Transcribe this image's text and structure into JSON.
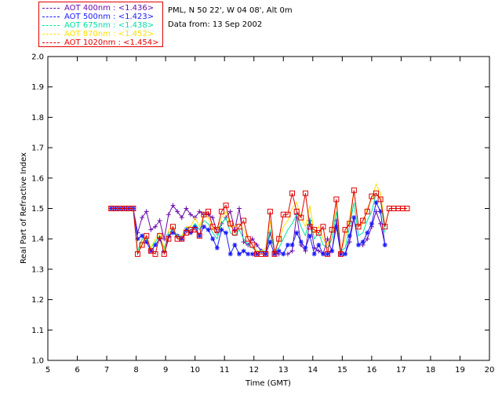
{
  "header": {
    "location": "PML, N 50 22', W 04 08', Alt 0m",
    "date": "Data from: 13 Sep 2002"
  },
  "legend": [
    {
      "label": "AOT  400nm : <1.436>",
      "color": "#6a0dad"
    },
    {
      "label": "AOT  500nm : <1.423>",
      "color": "#1a1aff"
    },
    {
      "label": "AOT  675nm : <1.438>",
      "color": "#00e0a0"
    },
    {
      "label": "AOT  870nm : <1.452>",
      "color": "#ffe000"
    },
    {
      "label": "AOT 1020nm : <1.454>",
      "color": "#e00000"
    }
  ],
  "chart_data": {
    "type": "line",
    "title": "",
    "xlabel": "Time (GMT)",
    "ylabel": "Real Part of Refractive Index",
    "xlim": [
      5,
      20
    ],
    "ylim": [
      1.0,
      2.0
    ],
    "xticks": [
      5,
      6,
      7,
      8,
      9,
      10,
      11,
      12,
      13,
      14,
      15,
      16,
      17,
      18,
      19,
      20
    ],
    "yticks": [
      1.0,
      1.1,
      1.2,
      1.3,
      1.4,
      1.5,
      1.6,
      1.7,
      1.8,
      1.9,
      2.0
    ],
    "ytick_labels": [
      "1.0",
      "1.1",
      "1.2",
      "1.3",
      "1.4",
      "1.5",
      "1.6",
      "1.7",
      "1.8",
      "1.9",
      "2.0"
    ],
    "x": [
      7.15,
      7.3,
      7.45,
      7.6,
      7.75,
      7.9,
      8.05,
      8.2,
      8.35,
      8.5,
      8.65,
      8.8,
      8.95,
      9.1,
      9.25,
      9.4,
      9.55,
      9.7,
      9.85,
      10.0,
      10.15,
      10.3,
      10.45,
      10.6,
      10.75,
      10.9,
      11.05,
      11.2,
      11.35,
      11.5,
      11.65,
      11.8,
      11.95,
      12.1,
      12.25,
      12.4,
      12.55,
      12.7,
      12.85,
      13.0,
      13.15,
      13.3,
      13.45,
      13.6,
      13.75,
      13.9,
      14.05,
      14.2,
      14.35,
      14.5,
      14.65,
      14.8,
      14.95,
      15.1,
      15.25,
      15.4,
      15.55,
      15.7,
      15.85,
      16.0,
      16.15,
      16.3,
      16.45,
      16.6,
      16.75,
      16.9,
      17.05,
      17.2
    ],
    "series": [
      {
        "name": "AOT  400nm",
        "color": "#6a0dad",
        "marker": "plus",
        "values": [
          1.5,
          1.5,
          1.5,
          1.5,
          1.5,
          1.5,
          1.42,
          1.47,
          1.49,
          1.43,
          1.44,
          1.46,
          1.4,
          1.48,
          1.51,
          1.49,
          1.47,
          1.5,
          1.48,
          1.47,
          1.49,
          1.48,
          1.48,
          1.47,
          1.42,
          1.45,
          1.47,
          1.49,
          1.43,
          1.5,
          1.39,
          1.38,
          1.4,
          1.38,
          1.36,
          1.35,
          1.42,
          1.36,
          1.35,
          1.35,
          1.35,
          1.36,
          1.48,
          1.38,
          1.36,
          1.46,
          1.37,
          1.36,
          1.35,
          1.4,
          1.36,
          1.46,
          1.35,
          1.35,
          1.39,
          1.47,
          1.38,
          1.38,
          1.4,
          1.44,
          1.49,
          1.45,
          1.38,
          null,
          null,
          null,
          null,
          null
        ]
      },
      {
        "name": "AOT  500nm",
        "color": "#1a1aff",
        "marker": "star",
        "values": [
          1.5,
          1.5,
          1.5,
          1.5,
          1.5,
          1.5,
          1.4,
          1.41,
          1.39,
          1.36,
          1.38,
          1.4,
          1.36,
          1.41,
          1.42,
          1.41,
          1.4,
          1.43,
          1.42,
          1.44,
          1.41,
          1.44,
          1.43,
          1.4,
          1.37,
          1.43,
          1.42,
          1.35,
          1.38,
          1.35,
          1.36,
          1.35,
          1.35,
          1.35,
          1.36,
          1.35,
          1.39,
          1.35,
          1.36,
          1.35,
          1.38,
          1.38,
          1.42,
          1.39,
          1.37,
          1.41,
          1.35,
          1.38,
          1.35,
          1.35,
          1.36,
          1.44,
          1.35,
          1.35,
          1.41,
          1.47,
          1.38,
          1.39,
          1.42,
          1.45,
          1.52,
          1.49,
          1.38,
          null,
          null,
          null,
          null,
          null
        ]
      },
      {
        "name": "AOT  675nm",
        "color": "#00e0a0",
        "marker": "none",
        "values": [
          1.5,
          1.5,
          1.5,
          1.5,
          1.5,
          1.5,
          1.36,
          1.4,
          1.4,
          1.37,
          1.39,
          1.41,
          1.37,
          1.42,
          1.43,
          1.41,
          1.41,
          1.44,
          1.43,
          1.45,
          1.43,
          1.46,
          1.45,
          1.42,
          1.4,
          1.45,
          1.47,
          1.42,
          1.41,
          1.43,
          1.4,
          1.38,
          1.37,
          1.36,
          1.36,
          1.36,
          1.43,
          1.36,
          1.37,
          1.4,
          1.43,
          1.45,
          1.48,
          1.44,
          1.41,
          1.47,
          1.4,
          1.42,
          1.38,
          1.37,
          1.4,
          1.49,
          1.36,
          1.37,
          1.44,
          1.52,
          1.41,
          1.42,
          1.46,
          1.49,
          1.55,
          1.53,
          1.42,
          null,
          null,
          null,
          null,
          null
        ]
      },
      {
        "name": "AOT  870nm",
        "color": "#ffe000",
        "marker": "none",
        "values": [
          1.5,
          1.5,
          1.5,
          1.5,
          1.5,
          1.5,
          1.35,
          1.39,
          1.41,
          1.37,
          1.4,
          1.42,
          1.36,
          1.43,
          1.44,
          1.4,
          1.41,
          1.44,
          1.44,
          1.47,
          1.44,
          1.48,
          1.47,
          1.43,
          1.42,
          1.47,
          1.49,
          1.44,
          1.44,
          1.45,
          1.43,
          1.4,
          1.38,
          1.36,
          1.36,
          1.37,
          1.46,
          1.36,
          1.39,
          1.44,
          1.46,
          1.5,
          1.52,
          1.47,
          1.44,
          1.51,
          1.42,
          1.44,
          1.4,
          1.38,
          1.42,
          1.52,
          1.36,
          1.4,
          1.47,
          1.56,
          1.44,
          1.45,
          1.5,
          1.53,
          1.58,
          1.55,
          1.44,
          1.5,
          1.5,
          1.5,
          1.5,
          1.5
        ]
      },
      {
        "name": "AOT 1020nm",
        "color": "#e00000",
        "marker": "square",
        "values": [
          1.5,
          1.5,
          1.5,
          1.5,
          1.5,
          1.5,
          1.35,
          1.38,
          1.41,
          1.36,
          1.35,
          1.41,
          1.35,
          1.4,
          1.44,
          1.4,
          1.4,
          1.42,
          1.43,
          1.43,
          1.41,
          1.48,
          1.49,
          1.44,
          1.43,
          1.49,
          1.51,
          1.45,
          1.42,
          1.44,
          1.46,
          1.4,
          1.38,
          1.35,
          1.35,
          1.35,
          1.49,
          1.35,
          1.4,
          1.48,
          1.48,
          1.55,
          1.49,
          1.47,
          1.55,
          1.44,
          1.43,
          1.42,
          1.44,
          1.35,
          1.43,
          1.53,
          1.35,
          1.43,
          1.45,
          1.56,
          1.44,
          1.46,
          1.49,
          1.54,
          1.55,
          1.53,
          1.44,
          1.5,
          1.5,
          1.5,
          1.5,
          1.5
        ]
      }
    ]
  }
}
